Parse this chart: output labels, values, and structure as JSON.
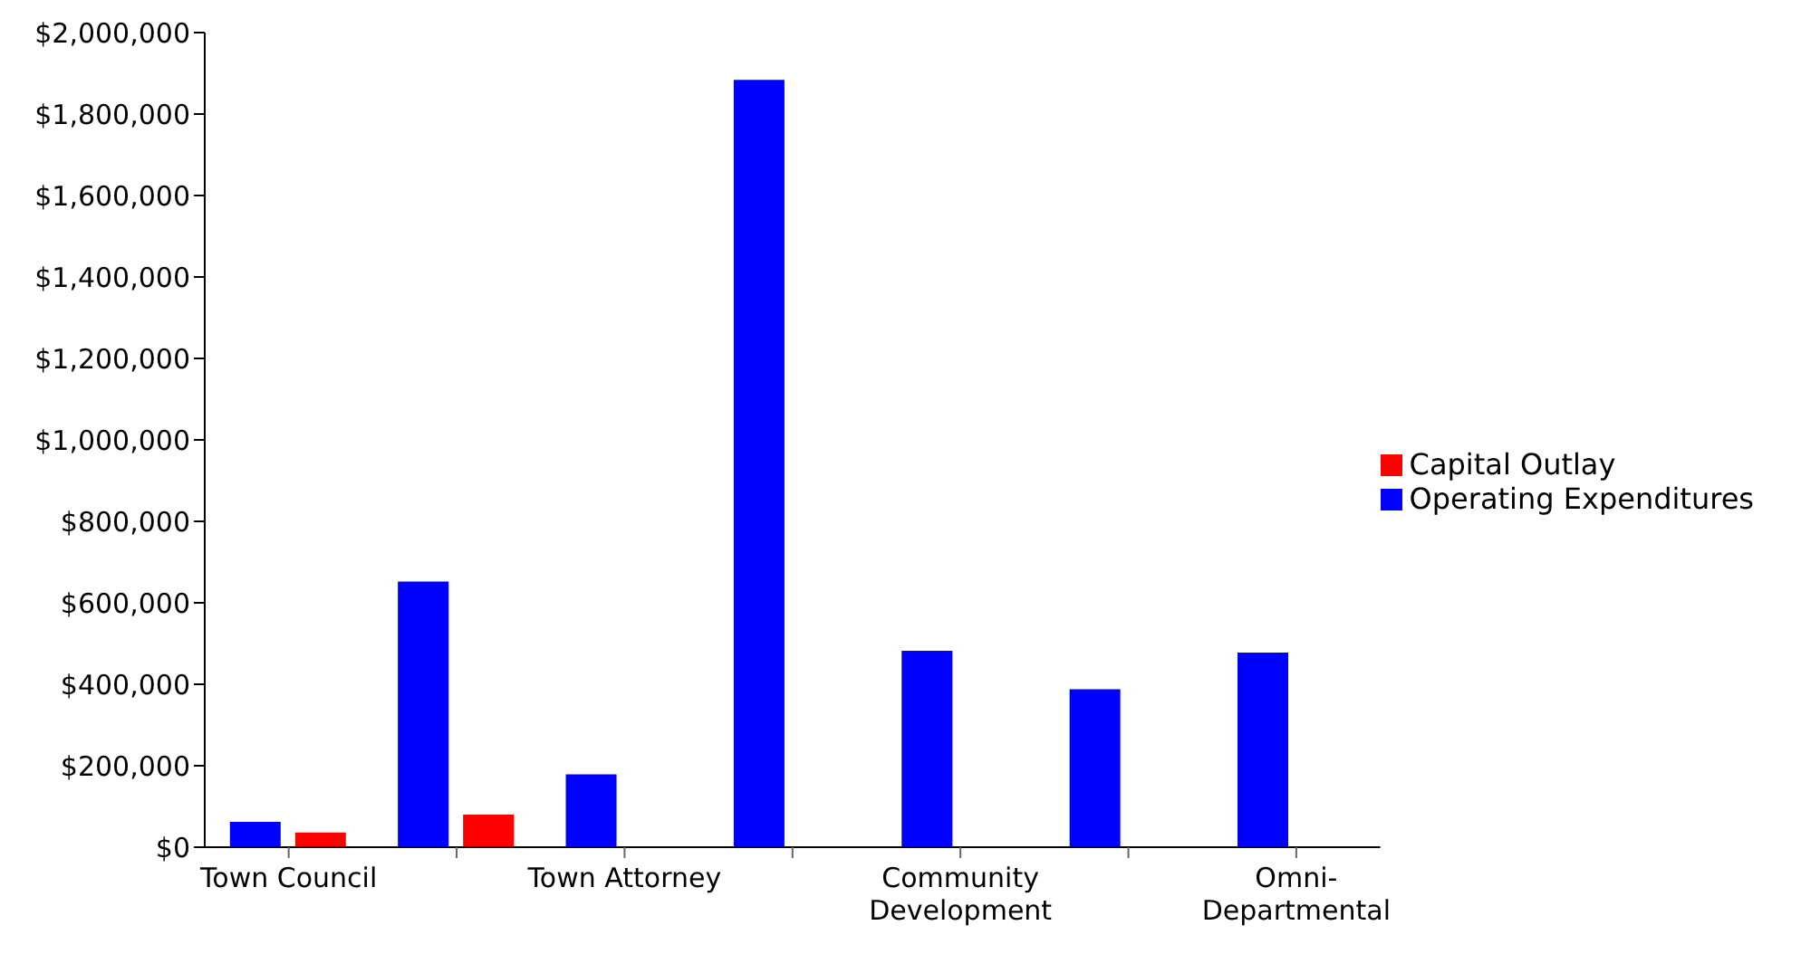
{
  "chart_data": {
    "type": "bar",
    "categories": [
      "Town Council",
      null,
      "Town Attorney",
      null,
      "Community Development",
      null,
      "Omni-Departmental"
    ],
    "series": [
      {
        "name": "Operating Expenditures",
        "color": "#0000ff",
        "values": [
          62000,
          652000,
          179000,
          1884000,
          482000,
          388000,
          478000
        ]
      },
      {
        "name": "Capital Outlay",
        "color": "#ff0000",
        "values": [
          36000,
          80000,
          0,
          0,
          0,
          0,
          0
        ]
      }
    ],
    "ylim": [
      0,
      2000000
    ],
    "yticks": [
      {
        "value": 0,
        "label": "$0"
      },
      {
        "value": 200000,
        "label": "$200,000"
      },
      {
        "value": 400000,
        "label": "$400,000"
      },
      {
        "value": 600000,
        "label": "$600,000"
      },
      {
        "value": 800000,
        "label": "$800,000"
      },
      {
        "value": 1000000,
        "label": "$1,000,000"
      },
      {
        "value": 1200000,
        "label": "$1,200,000"
      },
      {
        "value": 1400000,
        "label": "$1,400,000"
      },
      {
        "value": 1600000,
        "label": "$1,600,000"
      },
      {
        "value": 1800000,
        "label": "$1,800,000"
      },
      {
        "value": 2000000,
        "label": "$2,000,000"
      }
    ],
    "grid": false,
    "legend": "right"
  }
}
